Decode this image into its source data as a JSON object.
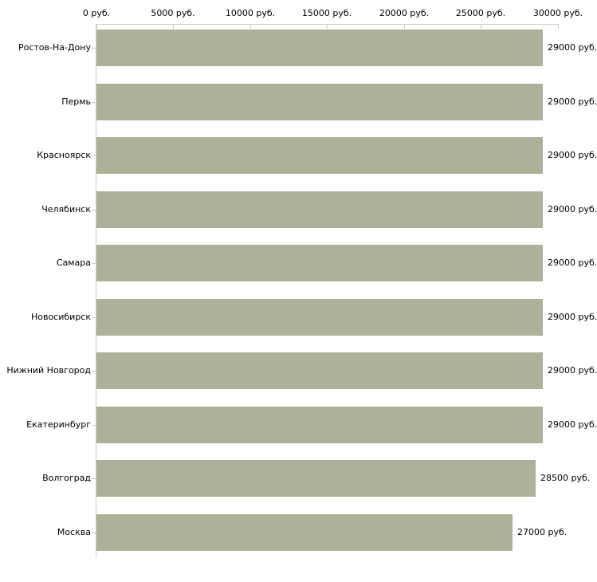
{
  "chart": {
    "background_color": "#ffffff",
    "bar_color": "#abb299",
    "axis_color": "#ccccbe",
    "text_color": "#000000"
  },
  "chart_data": {
    "type": "bar",
    "orientation": "horizontal",
    "title": "",
    "xlabel": "",
    "ylabel": "",
    "unit": "руб.",
    "xlim": [
      0,
      30000
    ],
    "grid": false,
    "legend": false,
    "x_axis_position": "top",
    "x_tick_values": [
      0,
      5000,
      10000,
      15000,
      20000,
      25000,
      30000
    ],
    "x_tick_labels": [
      "0 руб.",
      "5000 руб.",
      "10000 руб.",
      "15000 руб.",
      "20000 руб.",
      "25000 руб.",
      "30000 руб."
    ],
    "categories": [
      "Ростов-На-Дону",
      "Пермь",
      "Красноярск",
      "Челябинск",
      "Самара",
      "Новосибирск",
      "Нижний Новгород",
      "Екатеринбург",
      "Волгоград",
      "Москва"
    ],
    "values": [
      29000,
      29000,
      29000,
      29000,
      29000,
      29000,
      29000,
      29000,
      28500,
      27000
    ],
    "value_labels": [
      "29000 руб.",
      "29000 руб.",
      "29000 руб.",
      "29000 руб.",
      "29000 руб.",
      "29000 руб.",
      "29000 руб.",
      "29000 руб.",
      "28500 руб.",
      "27000 руб."
    ]
  }
}
